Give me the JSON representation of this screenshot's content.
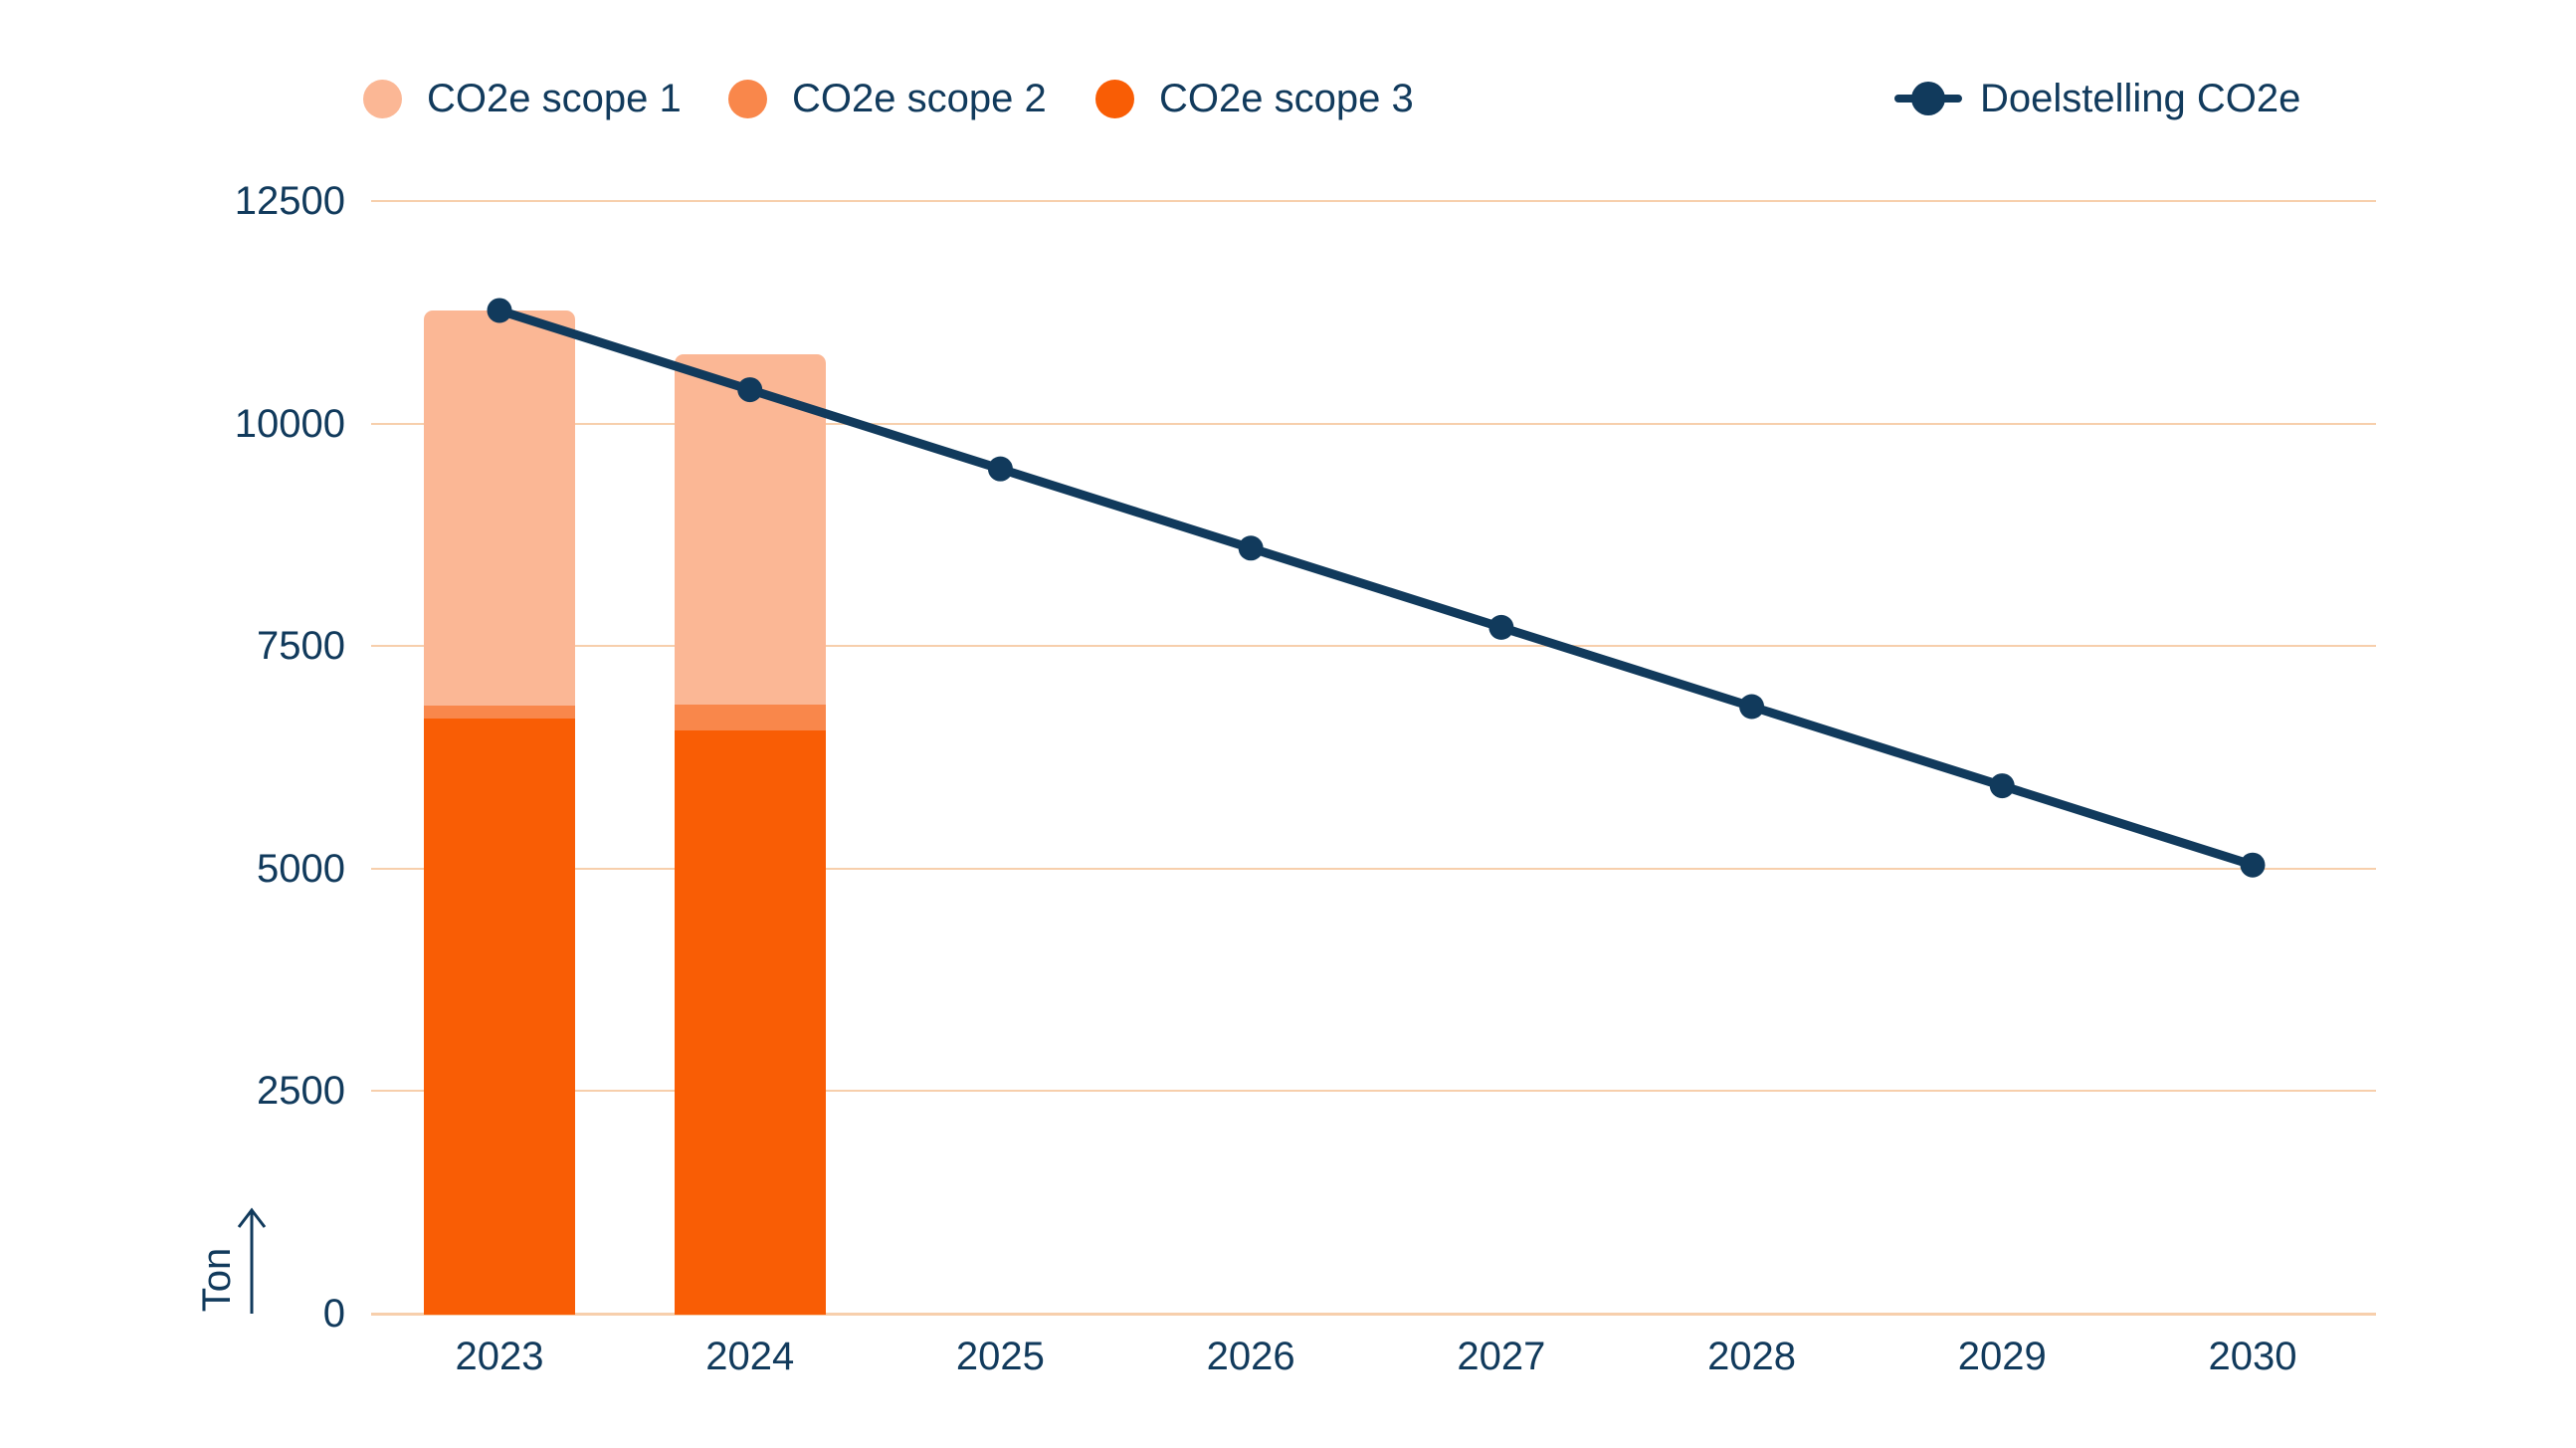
{
  "page": {
    "background": "#FFFFFF"
  },
  "legend": {
    "position": "top",
    "items": [
      {
        "label": "CO2e scope 1"
      },
      {
        "label": "CO2e scope 2"
      },
      {
        "label": "CO2e scope 3"
      },
      {
        "label": "Doelstelling CO2e"
      }
    ]
  },
  "chart_data": {
    "type": "stacked-bar + line",
    "title": "",
    "xlabel": "",
    "ylabel": "Ton",
    "categories": [
      "2023",
      "2024",
      "2025",
      "2026",
      "2027",
      "2028",
      "2029",
      "2030"
    ],
    "bar_series": [
      {
        "name": "CO2e scope 1",
        "color": "#FBB795",
        "values": [
          4440,
          3940,
          null,
          null,
          null,
          null,
          null,
          null
        ]
      },
      {
        "name": "CO2e scope 2",
        "color": "#F9874B",
        "values": [
          140,
          290,
          null,
          null,
          null,
          null,
          null,
          null
        ]
      },
      {
        "name": "CO2e scope 3",
        "color": "#F95D05",
        "values": [
          6690,
          6550,
          null,
          null,
          null,
          null,
          null,
          null
        ]
      }
    ],
    "stacking": "bottom-to-top: CO2e scope 3, CO2e scope 2, CO2e scope 1",
    "bar_totals": [
      11270,
      10780,
      null,
      null,
      null,
      null,
      null,
      null
    ],
    "line_series": {
      "name": "Doelstelling CO2e",
      "color": "#113A5C",
      "values": [
        11270,
        10380,
        9490,
        8600,
        7710,
        6820,
        5930,
        5040
      ]
    },
    "yticks": [
      0,
      2500,
      5000,
      7500,
      10000,
      12500
    ],
    "ylim": [
      0,
      13600
    ],
    "grid": "horizontal-only",
    "gridline_color": "#F7CFAC",
    "legend_position": "top"
  }
}
